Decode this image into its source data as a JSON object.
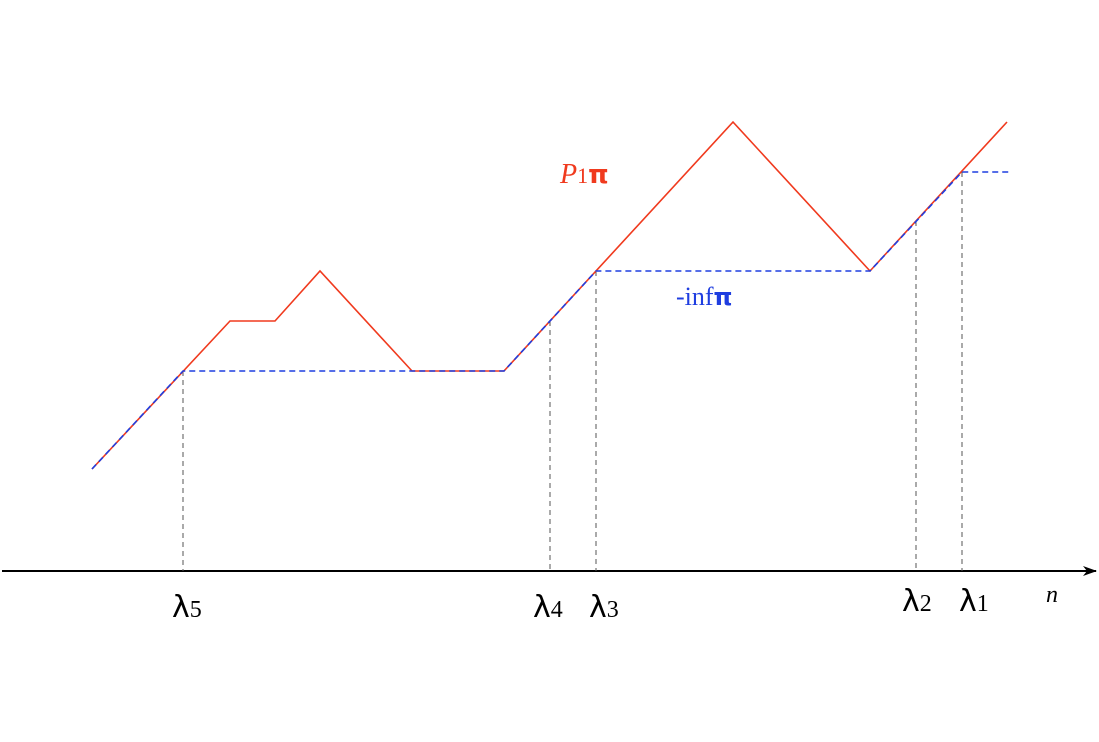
{
  "colors": {
    "path": "#f03a1e",
    "infimum": "#1f3ee0",
    "guide": "#555555",
    "axis": "#000000"
  },
  "path_label": {
    "main": "P",
    "sub": "1",
    "symbol": "π"
  },
  "infimum_label": {
    "main": "-inf",
    "symbol": "π"
  },
  "axis_label": "n",
  "markers": [
    {
      "base": "λ",
      "sub": "5"
    },
    {
      "base": "λ",
      "sub": "4"
    },
    {
      "base": "λ",
      "sub": "3"
    },
    {
      "base": "λ",
      "sub": "2"
    },
    {
      "base": "λ",
      "sub": "1"
    }
  ]
}
